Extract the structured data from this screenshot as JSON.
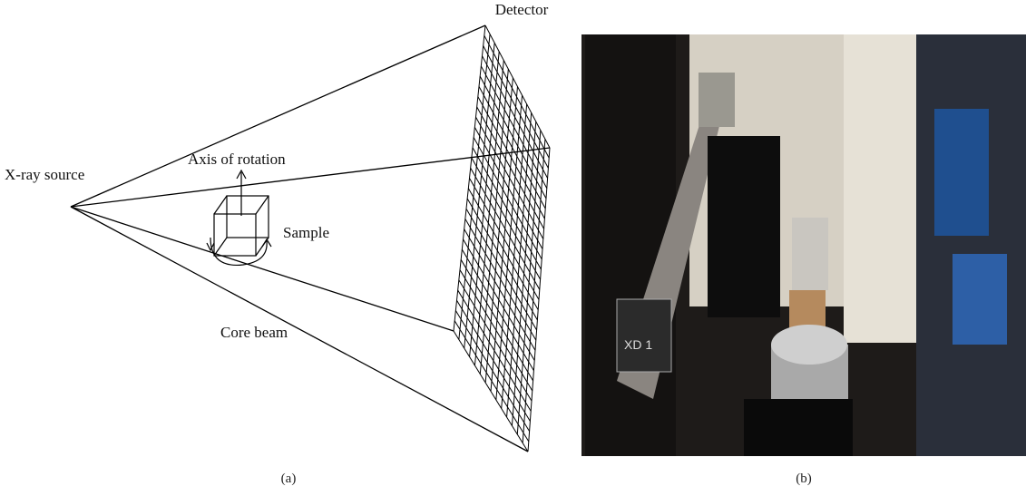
{
  "figure": {
    "panel_a": {
      "label": "(a)",
      "detector": "Detector",
      "source": "X-ray source",
      "axis": "Axis of rotation",
      "sample": "Sample",
      "beam": "Core beam"
    },
    "panel_b": {
      "label": "(b)",
      "plate": "XD 1"
    }
  }
}
